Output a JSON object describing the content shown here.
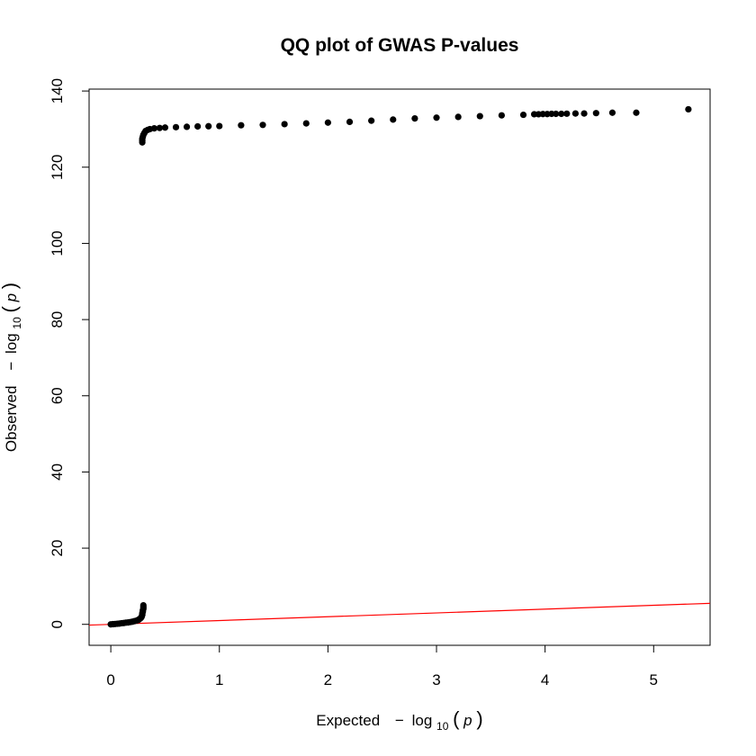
{
  "chart_data": {
    "type": "scatter",
    "title": "QQ plot of GWAS P-values",
    "xlabel": {
      "prefix": "Expected",
      "minus": "−",
      "log": "log",
      "base": "10",
      "open": "(",
      "var": "p",
      "close": ")"
    },
    "ylabel": {
      "prefix": "Observed",
      "minus": "−",
      "log": "log",
      "base": "10",
      "open": "(",
      "var": "p",
      "close": ")"
    },
    "xlim": [
      -0.2,
      5.52
    ],
    "ylim": [
      -5.5,
      140.5
    ],
    "xticks": [
      0,
      1,
      2,
      3,
      4,
      5
    ],
    "yticks": [
      0,
      20,
      40,
      60,
      80,
      100,
      120,
      140
    ],
    "grid": false,
    "point_color": "#000000",
    "reference_line": {
      "slope": 1,
      "intercept": 0,
      "color": "#ff0000"
    },
    "lower_cluster": {
      "x": [
        0.0,
        0.02,
        0.04,
        0.06,
        0.08,
        0.1,
        0.12,
        0.14,
        0.16,
        0.18,
        0.2,
        0.22,
        0.24,
        0.25,
        0.26,
        0.27,
        0.28,
        0.285,
        0.29,
        0.29,
        0.295,
        0.295,
        0.3,
        0.3,
        0.3
      ],
      "y": [
        0.0,
        0.05,
        0.1,
        0.15,
        0.2,
        0.3,
        0.35,
        0.45,
        0.5,
        0.6,
        0.7,
        0.85,
        1.0,
        1.1,
        1.3,
        1.5,
        1.8,
        2.1,
        2.5,
        2.9,
        3.3,
        3.7,
        4.1,
        4.5,
        5.0
      ]
    },
    "upper_cluster": {
      "x": [
        0.29,
        0.29,
        0.29,
        0.295,
        0.3,
        0.31,
        0.32,
        0.34,
        0.36,
        0.4,
        0.45,
        0.5,
        0.6,
        0.7,
        0.8,
        0.9,
        1.0,
        1.2,
        1.4,
        1.6,
        1.8,
        2.0,
        2.2,
        2.4,
        2.6,
        2.8,
        3.0,
        3.2,
        3.4,
        3.6,
        3.8,
        3.9,
        3.94,
        3.98,
        4.02,
        4.06,
        4.1,
        4.15,
        4.2,
        4.28,
        4.36,
        4.47,
        4.62,
        4.84,
        5.32
      ],
      "y": [
        126.5,
        127.0,
        127.5,
        128.0,
        128.5,
        129.0,
        129.5,
        129.8,
        130.0,
        130.2,
        130.3,
        130.4,
        130.5,
        130.6,
        130.7,
        130.75,
        130.8,
        131.0,
        131.1,
        131.3,
        131.5,
        131.7,
        131.9,
        132.2,
        132.5,
        132.8,
        133.0,
        133.2,
        133.4,
        133.6,
        133.75,
        133.9,
        133.9,
        133.95,
        133.95,
        134.0,
        134.0,
        134.0,
        134.05,
        134.1,
        134.1,
        134.2,
        134.3,
        134.3,
        135.2
      ]
    }
  }
}
